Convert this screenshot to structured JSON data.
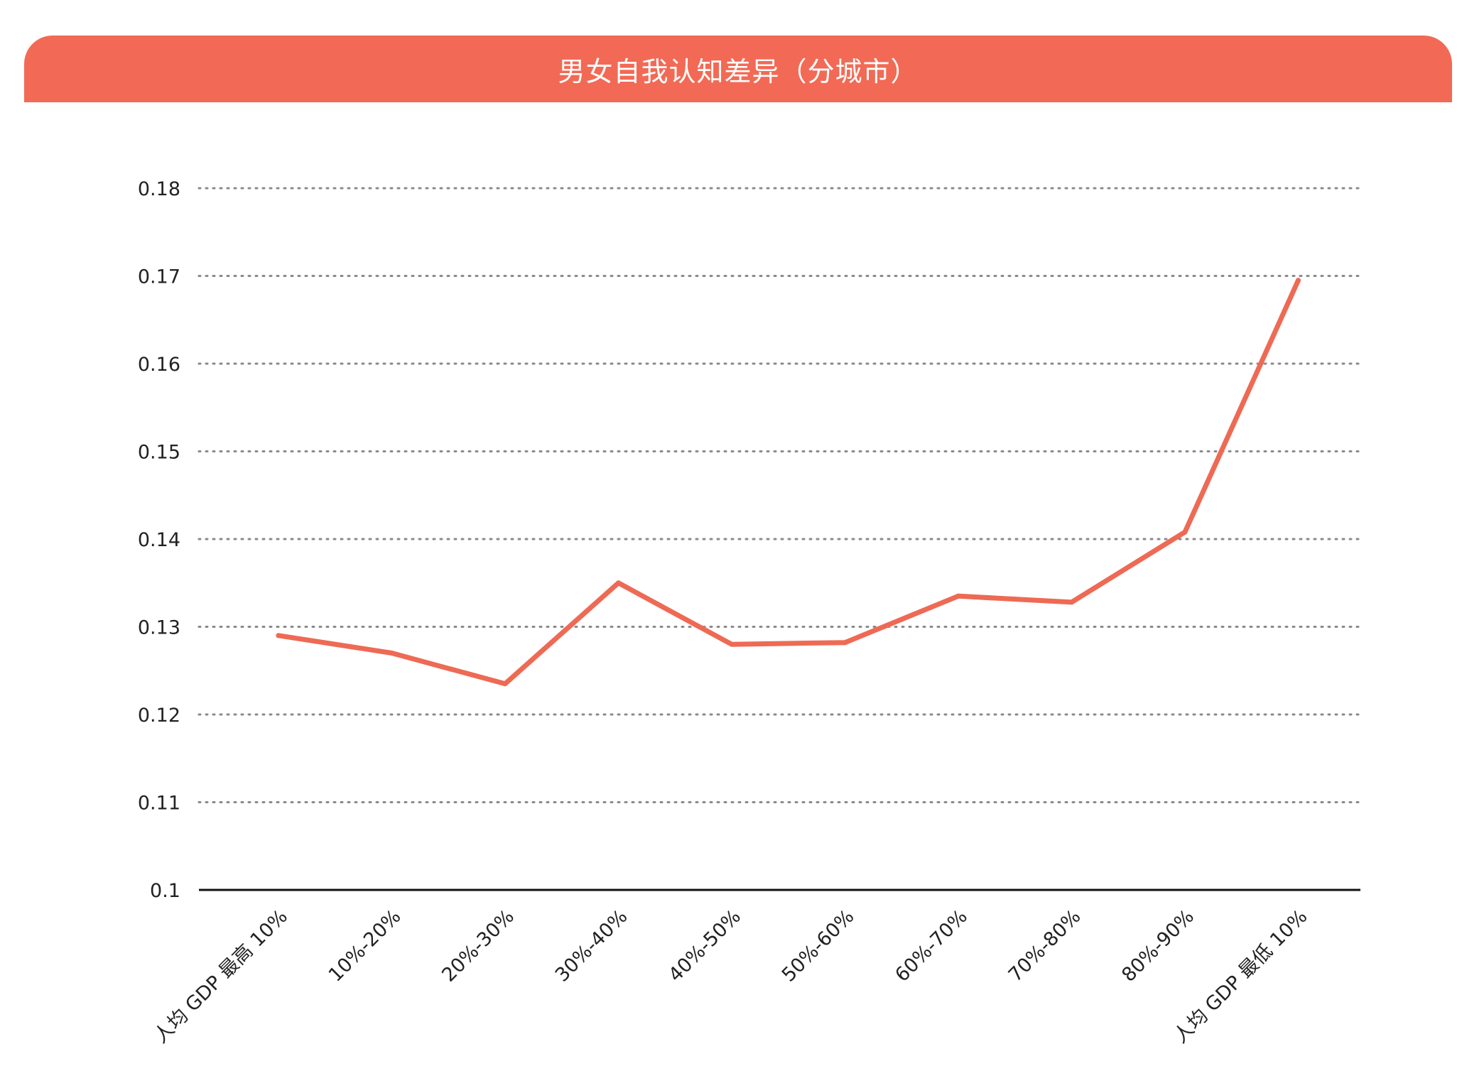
{
  "chart_data": {
    "type": "line",
    "title": "男女自我认知差异（分城市）",
    "xlabel": "",
    "ylabel": "",
    "categories": [
      "人均 GDP 最高 10%",
      "10%-20%",
      "20%-30%",
      "30%-40%",
      "40%-50%",
      "50%-60%",
      "60%-70%",
      "70%-80%",
      "80%-90%",
      "人均 GDP 最低 10%"
    ],
    "series": [
      {
        "values": [
          0.129,
          0.127,
          0.1235,
          0.135,
          0.128,
          0.1282,
          0.1335,
          0.1328,
          0.1408,
          0.1695
        ]
      }
    ],
    "ylim": [
      0.1,
      0.18
    ],
    "yticks": [
      "0.1",
      "0.11",
      "0.12",
      "0.13",
      "0.14",
      "0.15",
      "0.16",
      "0.17",
      "0.18"
    ],
    "grid": true,
    "legend": "none"
  },
  "colors": {
    "banner": "#f26a55",
    "line": "#ee6a54",
    "grid": "#8a8a8a",
    "axis": "#111111"
  }
}
